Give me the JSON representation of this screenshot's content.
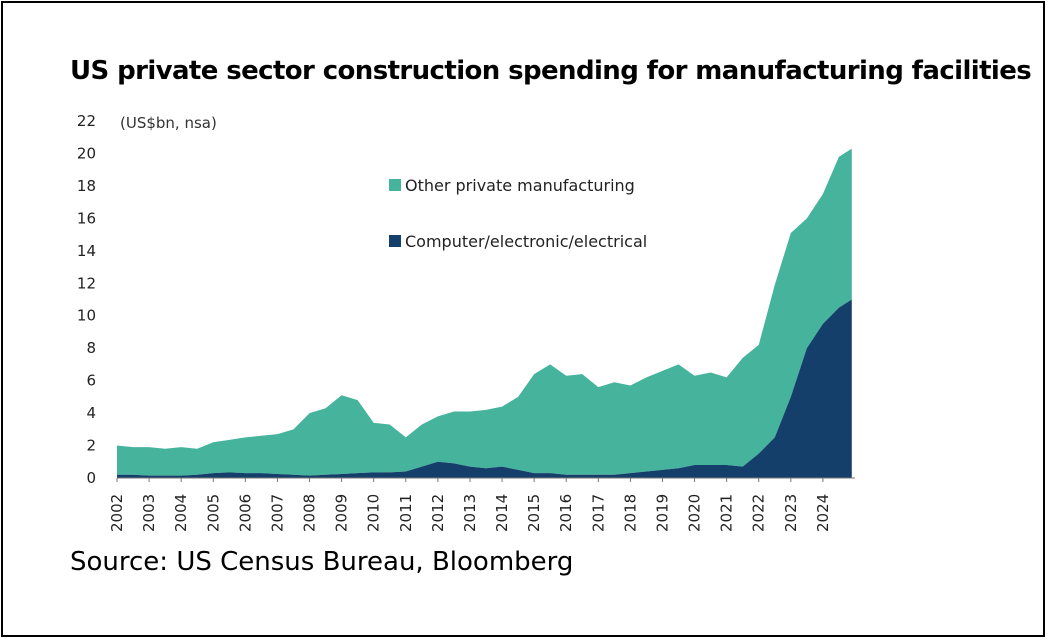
{
  "title": "US private sector construction spending for manufacturing facilities",
  "source": "Source: US Census Bureau, Bloomberg",
  "colors": {
    "other": "#46b39d",
    "computer": "#143f6b",
    "axis": "#777777"
  },
  "chart_data": {
    "type": "area",
    "stacked": true,
    "unit_label": "(US$bn, nsa)",
    "xlim": [
      2002,
      2025
    ],
    "ylim": [
      0,
      22
    ],
    "yticks": [
      "0",
      "2",
      "4",
      "6",
      "8",
      "10",
      "12",
      "14",
      "16",
      "18",
      "20",
      "22"
    ],
    "xticks": [
      "2002",
      "2003",
      "2004",
      "2005",
      "2006",
      "2007",
      "2008",
      "2009",
      "2010",
      "2011",
      "2012",
      "2013",
      "2014",
      "2015",
      "2016",
      "2017",
      "2018",
      "2019",
      "2020",
      "2021",
      "2022",
      "2023",
      "2024"
    ],
    "legend": [
      {
        "name": "Other private manufacturing",
        "color": "#46b39d"
      },
      {
        "name": "Computer/electronic/electrical",
        "color": "#143f6b"
      }
    ],
    "legend_position": "upper-middle",
    "x": [
      2002.0,
      2002.5,
      2003.0,
      2003.5,
      2004.0,
      2004.5,
      2005.0,
      2005.5,
      2006.0,
      2006.5,
      2007.0,
      2007.5,
      2008.0,
      2008.5,
      2009.0,
      2009.5,
      2010.0,
      2010.5,
      2011.0,
      2011.5,
      2012.0,
      2012.5,
      2013.0,
      2013.5,
      2014.0,
      2014.5,
      2015.0,
      2015.5,
      2016.0,
      2016.5,
      2017.0,
      2017.5,
      2018.0,
      2018.5,
      2019.0,
      2019.5,
      2020.0,
      2020.5,
      2021.0,
      2021.5,
      2022.0,
      2022.5,
      2023.0,
      2023.5,
      2024.0,
      2024.5,
      2024.9
    ],
    "series": [
      {
        "name": "Computer/electronic/electrical",
        "values": [
          0.2,
          0.2,
          0.15,
          0.15,
          0.15,
          0.2,
          0.3,
          0.35,
          0.3,
          0.3,
          0.25,
          0.2,
          0.15,
          0.2,
          0.25,
          0.3,
          0.35,
          0.35,
          0.4,
          0.7,
          1.0,
          0.9,
          0.7,
          0.6,
          0.7,
          0.5,
          0.3,
          0.3,
          0.2,
          0.2,
          0.2,
          0.2,
          0.3,
          0.4,
          0.5,
          0.6,
          0.8,
          0.8,
          0.8,
          0.7,
          1.5,
          2.5,
          5.0,
          8.0,
          9.5,
          10.5,
          11.0
        ]
      },
      {
        "name": "Other private manufacturing",
        "values": [
          1.8,
          1.7,
          1.75,
          1.65,
          1.75,
          1.6,
          1.9,
          2.0,
          2.2,
          2.3,
          2.45,
          2.8,
          3.85,
          4.1,
          4.85,
          4.5,
          3.05,
          2.95,
          2.1,
          2.6,
          2.8,
          3.2,
          3.4,
          3.6,
          3.7,
          4.5,
          6.1,
          6.7,
          6.1,
          6.2,
          5.4,
          5.7,
          5.4,
          5.8,
          6.1,
          6.4,
          5.5,
          5.7,
          5.4,
          6.7,
          6.7,
          9.4,
          10.1,
          8.0,
          8.0,
          9.3,
          9.3
        ]
      }
    ]
  }
}
